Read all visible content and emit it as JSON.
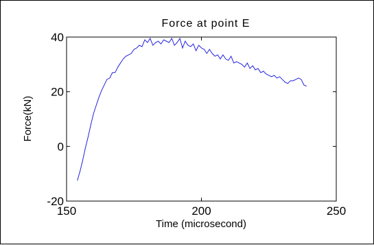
{
  "chart_data": {
    "type": "line",
    "title": "Force at point E",
    "xlabel": "Time (microsecond)",
    "ylabel": "Force(kN)",
    "xlim": [
      150,
      250
    ],
    "ylim": [
      -20,
      40
    ],
    "xticks": [
      "150",
      "200",
      "250"
    ],
    "yticks": [
      "-20",
      "0",
      "20",
      "40"
    ],
    "grid": false,
    "line_color": "#2222dd",
    "series": [
      {
        "x": [
          154,
          155,
          156,
          157,
          158,
          159,
          160,
          161,
          162,
          163,
          164,
          165,
          166,
          167,
          168,
          169,
          170,
          171,
          172,
          173,
          174,
          175,
          176,
          177,
          178,
          179,
          180,
          181,
          182,
          183,
          184,
          185,
          186,
          187,
          188,
          189,
          190,
          191,
          192,
          193,
          194,
          195,
          196,
          197,
          198,
          199,
          200,
          201,
          202,
          203,
          204,
          205,
          206,
          207,
          208,
          209,
          210,
          211,
          212,
          213,
          214,
          215,
          216,
          217,
          218,
          219,
          220,
          221,
          222,
          223,
          224,
          225,
          226,
          227,
          228,
          229,
          230,
          231,
          232,
          233,
          234,
          235,
          236,
          237,
          238,
          239
        ],
        "y": [
          -12.5,
          -9,
          -5,
          -0.5,
          3.5,
          8,
          12,
          15,
          18,
          20.5,
          22.5,
          24.5,
          25,
          27,
          27,
          29,
          30.5,
          32,
          33,
          33.5,
          34,
          35.5,
          36,
          37,
          36.5,
          39,
          38,
          39.5,
          37,
          38,
          38.5,
          37.5,
          39,
          38.5,
          38,
          39.5,
          37,
          38,
          39.5,
          36,
          38.5,
          37,
          36.5,
          37.5,
          35,
          37,
          36,
          35.5,
          34,
          35.5,
          34,
          33,
          33.5,
          32,
          33.5,
          32,
          31.5,
          33,
          30.5,
          31,
          30.5,
          30,
          29,
          30.5,
          28.5,
          29.5,
          28,
          28.5,
          27,
          27.5,
          26.5,
          26,
          25.5,
          26,
          25,
          25.5,
          24.5,
          23.5,
          23,
          24,
          24,
          24.5,
          25,
          24.5,
          22.5,
          22
        ]
      }
    ]
  }
}
